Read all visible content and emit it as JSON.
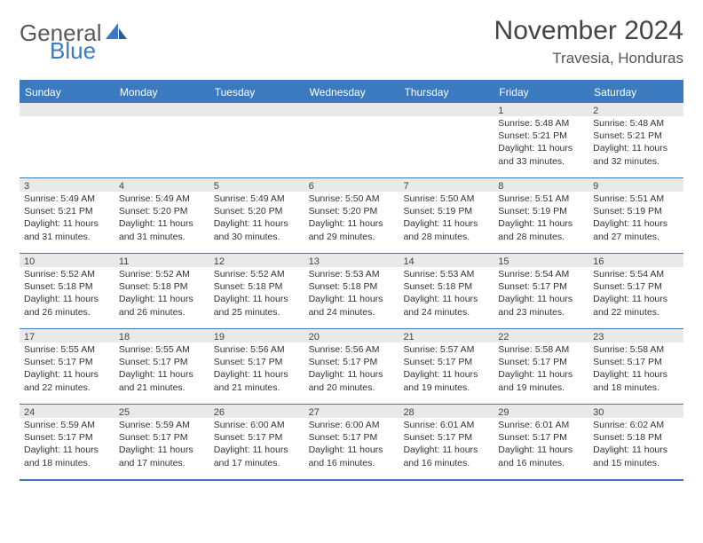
{
  "header": {
    "logo_word1": "General",
    "logo_word2": "Blue",
    "month_title": "November 2024",
    "location": "Travesia, Honduras"
  },
  "colors": {
    "accent": "#3b7abf",
    "header_text": "#ffffff",
    "daynum_bg": "#e9e9e9",
    "text": "#333333",
    "logo_gray": "#5a5a5a"
  },
  "calendar": {
    "day_headers": [
      "Sunday",
      "Monday",
      "Tuesday",
      "Wednesday",
      "Thursday",
      "Friday",
      "Saturday"
    ],
    "weeks": [
      [
        {
          "day": "",
          "sunrise": "",
          "sunset": "",
          "daylight": ""
        },
        {
          "day": "",
          "sunrise": "",
          "sunset": "",
          "daylight": ""
        },
        {
          "day": "",
          "sunrise": "",
          "sunset": "",
          "daylight": ""
        },
        {
          "day": "",
          "sunrise": "",
          "sunset": "",
          "daylight": ""
        },
        {
          "day": "",
          "sunrise": "",
          "sunset": "",
          "daylight": ""
        },
        {
          "day": "1",
          "sunrise": "Sunrise: 5:48 AM",
          "sunset": "Sunset: 5:21 PM",
          "daylight": "Daylight: 11 hours and 33 minutes."
        },
        {
          "day": "2",
          "sunrise": "Sunrise: 5:48 AM",
          "sunset": "Sunset: 5:21 PM",
          "daylight": "Daylight: 11 hours and 32 minutes."
        }
      ],
      [
        {
          "day": "3",
          "sunrise": "Sunrise: 5:49 AM",
          "sunset": "Sunset: 5:21 PM",
          "daylight": "Daylight: 11 hours and 31 minutes."
        },
        {
          "day": "4",
          "sunrise": "Sunrise: 5:49 AM",
          "sunset": "Sunset: 5:20 PM",
          "daylight": "Daylight: 11 hours and 31 minutes."
        },
        {
          "day": "5",
          "sunrise": "Sunrise: 5:49 AM",
          "sunset": "Sunset: 5:20 PM",
          "daylight": "Daylight: 11 hours and 30 minutes."
        },
        {
          "day": "6",
          "sunrise": "Sunrise: 5:50 AM",
          "sunset": "Sunset: 5:20 PM",
          "daylight": "Daylight: 11 hours and 29 minutes."
        },
        {
          "day": "7",
          "sunrise": "Sunrise: 5:50 AM",
          "sunset": "Sunset: 5:19 PM",
          "daylight": "Daylight: 11 hours and 28 minutes."
        },
        {
          "day": "8",
          "sunrise": "Sunrise: 5:51 AM",
          "sunset": "Sunset: 5:19 PM",
          "daylight": "Daylight: 11 hours and 28 minutes."
        },
        {
          "day": "9",
          "sunrise": "Sunrise: 5:51 AM",
          "sunset": "Sunset: 5:19 PM",
          "daylight": "Daylight: 11 hours and 27 minutes."
        }
      ],
      [
        {
          "day": "10",
          "sunrise": "Sunrise: 5:52 AM",
          "sunset": "Sunset: 5:18 PM",
          "daylight": "Daylight: 11 hours and 26 minutes."
        },
        {
          "day": "11",
          "sunrise": "Sunrise: 5:52 AM",
          "sunset": "Sunset: 5:18 PM",
          "daylight": "Daylight: 11 hours and 26 minutes."
        },
        {
          "day": "12",
          "sunrise": "Sunrise: 5:52 AM",
          "sunset": "Sunset: 5:18 PM",
          "daylight": "Daylight: 11 hours and 25 minutes."
        },
        {
          "day": "13",
          "sunrise": "Sunrise: 5:53 AM",
          "sunset": "Sunset: 5:18 PM",
          "daylight": "Daylight: 11 hours and 24 minutes."
        },
        {
          "day": "14",
          "sunrise": "Sunrise: 5:53 AM",
          "sunset": "Sunset: 5:18 PM",
          "daylight": "Daylight: 11 hours and 24 minutes."
        },
        {
          "day": "15",
          "sunrise": "Sunrise: 5:54 AM",
          "sunset": "Sunset: 5:17 PM",
          "daylight": "Daylight: 11 hours and 23 minutes."
        },
        {
          "day": "16",
          "sunrise": "Sunrise: 5:54 AM",
          "sunset": "Sunset: 5:17 PM",
          "daylight": "Daylight: 11 hours and 22 minutes."
        }
      ],
      [
        {
          "day": "17",
          "sunrise": "Sunrise: 5:55 AM",
          "sunset": "Sunset: 5:17 PM",
          "daylight": "Daylight: 11 hours and 22 minutes."
        },
        {
          "day": "18",
          "sunrise": "Sunrise: 5:55 AM",
          "sunset": "Sunset: 5:17 PM",
          "daylight": "Daylight: 11 hours and 21 minutes."
        },
        {
          "day": "19",
          "sunrise": "Sunrise: 5:56 AM",
          "sunset": "Sunset: 5:17 PM",
          "daylight": "Daylight: 11 hours and 21 minutes."
        },
        {
          "day": "20",
          "sunrise": "Sunrise: 5:56 AM",
          "sunset": "Sunset: 5:17 PM",
          "daylight": "Daylight: 11 hours and 20 minutes."
        },
        {
          "day": "21",
          "sunrise": "Sunrise: 5:57 AM",
          "sunset": "Sunset: 5:17 PM",
          "daylight": "Daylight: 11 hours and 19 minutes."
        },
        {
          "day": "22",
          "sunrise": "Sunrise: 5:58 AM",
          "sunset": "Sunset: 5:17 PM",
          "daylight": "Daylight: 11 hours and 19 minutes."
        },
        {
          "day": "23",
          "sunrise": "Sunrise: 5:58 AM",
          "sunset": "Sunset: 5:17 PM",
          "daylight": "Daylight: 11 hours and 18 minutes."
        }
      ],
      [
        {
          "day": "24",
          "sunrise": "Sunrise: 5:59 AM",
          "sunset": "Sunset: 5:17 PM",
          "daylight": "Daylight: 11 hours and 18 minutes."
        },
        {
          "day": "25",
          "sunrise": "Sunrise: 5:59 AM",
          "sunset": "Sunset: 5:17 PM",
          "daylight": "Daylight: 11 hours and 17 minutes."
        },
        {
          "day": "26",
          "sunrise": "Sunrise: 6:00 AM",
          "sunset": "Sunset: 5:17 PM",
          "daylight": "Daylight: 11 hours and 17 minutes."
        },
        {
          "day": "27",
          "sunrise": "Sunrise: 6:00 AM",
          "sunset": "Sunset: 5:17 PM",
          "daylight": "Daylight: 11 hours and 16 minutes."
        },
        {
          "day": "28",
          "sunrise": "Sunrise: 6:01 AM",
          "sunset": "Sunset: 5:17 PM",
          "daylight": "Daylight: 11 hours and 16 minutes."
        },
        {
          "day": "29",
          "sunrise": "Sunrise: 6:01 AM",
          "sunset": "Sunset: 5:17 PM",
          "daylight": "Daylight: 11 hours and 16 minutes."
        },
        {
          "day": "30",
          "sunrise": "Sunrise: 6:02 AM",
          "sunset": "Sunset: 5:18 PM",
          "daylight": "Daylight: 11 hours and 15 minutes."
        }
      ]
    ]
  }
}
